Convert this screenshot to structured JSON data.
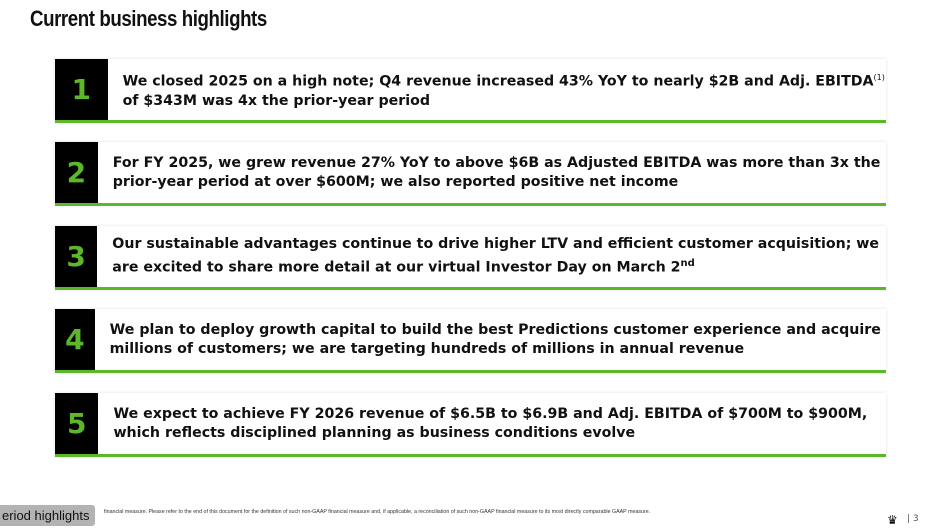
{
  "title": "Current business highlights",
  "items": [
    {
      "number": "1",
      "text": "We closed 2025 on a high note; Q4 revenue increased 43% YoY to nearly $2B and Adj. EBITDA",
      "sup": "(1)",
      "text2": " of $343M was 4x the prior-year period"
    },
    {
      "number": "2",
      "text": "For FY 2025, we grew revenue 27% YoY to above $6B as Adjusted EBITDA was more than 3x the prior-year period at over $600M; we also reported positive net income"
    },
    {
      "number": "3",
      "text": "Our sustainable advantages continue to drive higher LTV and efficient customer acquisition; we are excited to share more detail at our virtual Investor Day on March 2",
      "sup": "nd"
    },
    {
      "number": "4",
      "text": "We plan to deploy growth capital to build the best Predictions customer experience and acquire millions of customers; we are targeting hundreds of millions in annual revenue"
    },
    {
      "number": "5",
      "text": "We expect to achieve FY 2026 revenue of $6.5B to $6.9B and Adj. EBITDA of $700M to $900M, which reflects disciplined planning as business conditions evolve"
    }
  ],
  "footnote": "financial measure. Please refer to the end of this document for the definition of such non-GAAP financial measure and, if applicable, a reconciliation of such non-GAAP financial measure to its most directly comparable GAAP measure.",
  "tooltip": "eriod highlights",
  "page_number": "| 3",
  "colors": {
    "accent": "#5cb82a",
    "box": "#000000"
  }
}
